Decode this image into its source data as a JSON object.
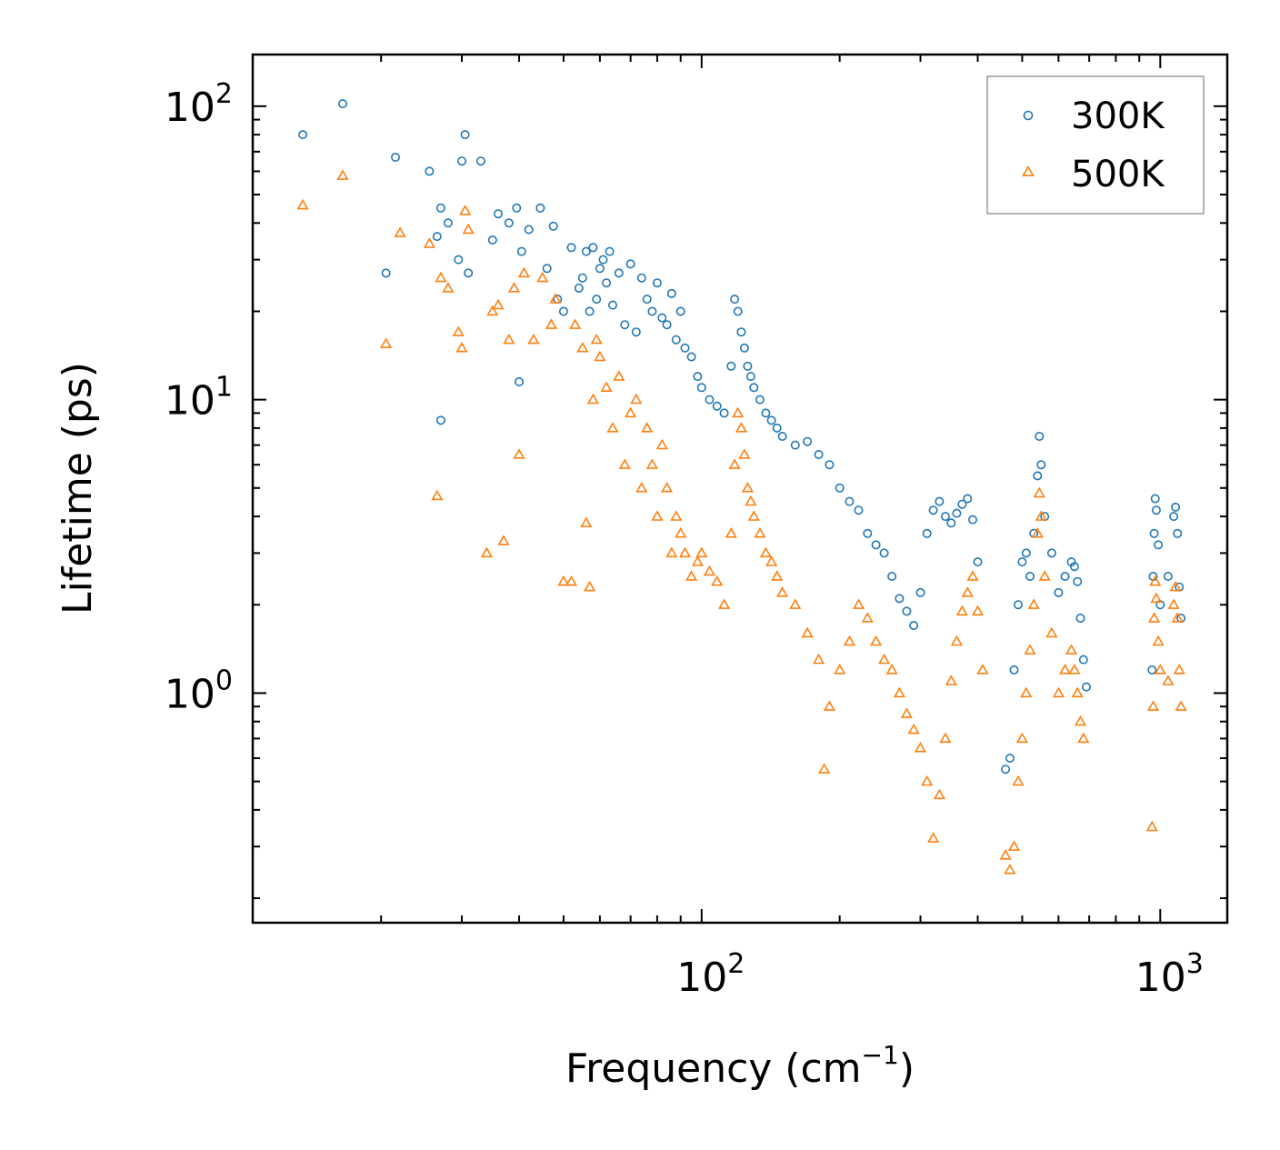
{
  "chart_data": {
    "type": "scatter",
    "title": "",
    "xlabel": "Frequency (cm",
    "xlabel_sup": "−1",
    "xlabel_close": ")",
    "ylabel": "Lifetime (ps)",
    "xscale": "log",
    "yscale": "log",
    "xlim": [
      10.5,
      1400
    ],
    "ylim": [
      0.165,
      150
    ],
    "x_ticks": [
      {
        "value": 100,
        "base": "10",
        "exp": "2"
      },
      {
        "value": 1000,
        "base": "10",
        "exp": "3"
      }
    ],
    "y_ticks": [
      {
        "value": 1,
        "base": "10",
        "exp": "0"
      },
      {
        "value": 10,
        "base": "10",
        "exp": "1"
      },
      {
        "value": 100,
        "base": "10",
        "exp": "2"
      }
    ],
    "legend_position": "top-right",
    "series": [
      {
        "name": "300K",
        "marker": "circle",
        "color": "#1f77b4",
        "points": [
          [
            13.5,
            80
          ],
          [
            16.5,
            102
          ],
          [
            21.5,
            67
          ],
          [
            25.5,
            60
          ],
          [
            20.5,
            27
          ],
          [
            26.5,
            36
          ],
          [
            27,
            45
          ],
          [
            28,
            40
          ],
          [
            29.5,
            30
          ],
          [
            30,
            65
          ],
          [
            30.5,
            80
          ],
          [
            31,
            27
          ],
          [
            33,
            65
          ],
          [
            27,
            8.5
          ],
          [
            35,
            35
          ],
          [
            36,
            43
          ],
          [
            38,
            40
          ],
          [
            39.5,
            45
          ],
          [
            40,
            11.5
          ],
          [
            40.5,
            32
          ],
          [
            42,
            38
          ],
          [
            44.5,
            45
          ],
          [
            46,
            28
          ],
          [
            47.5,
            39
          ],
          [
            48.5,
            22
          ],
          [
            50,
            20
          ],
          [
            52,
            33
          ],
          [
            54,
            24
          ],
          [
            55,
            26
          ],
          [
            56,
            32
          ],
          [
            57,
            20
          ],
          [
            58,
            33
          ],
          [
            59,
            22
          ],
          [
            60,
            28
          ],
          [
            61,
            30
          ],
          [
            62,
            25
          ],
          [
            63,
            32
          ],
          [
            64,
            21
          ],
          [
            66,
            27
          ],
          [
            68,
            18
          ],
          [
            70,
            29
          ],
          [
            72,
            17
          ],
          [
            74,
            26
          ],
          [
            76,
            22
          ],
          [
            78,
            20
          ],
          [
            80,
            25
          ],
          [
            82,
            19
          ],
          [
            84,
            18
          ],
          [
            86,
            23
          ],
          [
            88,
            16
          ],
          [
            90,
            20
          ],
          [
            92,
            15
          ],
          [
            95,
            14
          ],
          [
            98,
            12
          ],
          [
            100,
            11
          ],
          [
            104,
            10
          ],
          [
            108,
            9.5
          ],
          [
            112,
            9
          ],
          [
            116,
            13
          ],
          [
            118,
            22
          ],
          [
            120,
            20
          ],
          [
            122,
            17
          ],
          [
            124,
            15
          ],
          [
            126,
            13
          ],
          [
            128,
            12
          ],
          [
            130,
            11
          ],
          [
            134,
            10
          ],
          [
            138,
            9
          ],
          [
            142,
            8.5
          ],
          [
            146,
            8
          ],
          [
            150,
            7.5
          ],
          [
            160,
            7
          ],
          [
            170,
            7.2
          ],
          [
            180,
            6.5
          ],
          [
            190,
            6
          ],
          [
            200,
            5
          ],
          [
            210,
            4.5
          ],
          [
            220,
            4.2
          ],
          [
            230,
            3.5
          ],
          [
            240,
            3.2
          ],
          [
            250,
            3
          ],
          [
            260,
            2.5
          ],
          [
            270,
            2.1
          ],
          [
            280,
            1.9
          ],
          [
            290,
            1.7
          ],
          [
            300,
            2.2
          ],
          [
            310,
            3.5
          ],
          [
            320,
            4.2
          ],
          [
            330,
            4.5
          ],
          [
            340,
            4.0
          ],
          [
            350,
            3.8
          ],
          [
            360,
            4.1
          ],
          [
            370,
            4.4
          ],
          [
            380,
            4.6
          ],
          [
            390,
            3.9
          ],
          [
            400,
            2.8
          ],
          [
            460,
            0.55
          ],
          [
            470,
            0.6
          ],
          [
            480,
            1.2
          ],
          [
            490,
            2.0
          ],
          [
            500,
            2.8
          ],
          [
            510,
            3.0
          ],
          [
            520,
            2.5
          ],
          [
            530,
            3.5
          ],
          [
            540,
            5.5
          ],
          [
            545,
            7.5
          ],
          [
            550,
            6.0
          ],
          [
            560,
            4.0
          ],
          [
            580,
            3.0
          ],
          [
            600,
            2.2
          ],
          [
            620,
            2.5
          ],
          [
            640,
            2.8
          ],
          [
            650,
            2.7
          ],
          [
            660,
            2.4
          ],
          [
            670,
            1.8
          ],
          [
            680,
            1.3
          ],
          [
            690,
            1.05
          ],
          [
            960,
            1.2
          ],
          [
            965,
            2.5
          ],
          [
            970,
            3.5
          ],
          [
            975,
            4.6
          ],
          [
            980,
            4.2
          ],
          [
            990,
            3.2
          ],
          [
            1000,
            2.0
          ],
          [
            1040,
            2.5
          ],
          [
            1070,
            4.0
          ],
          [
            1080,
            4.3
          ],
          [
            1090,
            3.5
          ],
          [
            1100,
            2.3
          ],
          [
            1110,
            1.8
          ]
        ]
      },
      {
        "name": "500K",
        "marker": "triangle",
        "color": "#ff7f0e",
        "points": [
          [
            13.5,
            46
          ],
          [
            16.5,
            58
          ],
          [
            20.5,
            15.5
          ],
          [
            22,
            37
          ],
          [
            25.5,
            34
          ],
          [
            26.5,
            4.7
          ],
          [
            27,
            26
          ],
          [
            28,
            24
          ],
          [
            29.5,
            17
          ],
          [
            30,
            15
          ],
          [
            30.5,
            44
          ],
          [
            31,
            38
          ],
          [
            34,
            3.0
          ],
          [
            35,
            20
          ],
          [
            36,
            21
          ],
          [
            37,
            3.3
          ],
          [
            38,
            16
          ],
          [
            39,
            24
          ],
          [
            40,
            6.5
          ],
          [
            41,
            27
          ],
          [
            43,
            16
          ],
          [
            45,
            26
          ],
          [
            47,
            18
          ],
          [
            48,
            22
          ],
          [
            50,
            2.4
          ],
          [
            52,
            2.4
          ],
          [
            53,
            18
          ],
          [
            55,
            15
          ],
          [
            56,
            3.8
          ],
          [
            57,
            2.3
          ],
          [
            58,
            10
          ],
          [
            59,
            16
          ],
          [
            60,
            14
          ],
          [
            62,
            11
          ],
          [
            64,
            8
          ],
          [
            66,
            12
          ],
          [
            68,
            6
          ],
          [
            70,
            9
          ],
          [
            72,
            10
          ],
          [
            74,
            5
          ],
          [
            76,
            8
          ],
          [
            78,
            6
          ],
          [
            80,
            4
          ],
          [
            82,
            7
          ],
          [
            84,
            5
          ],
          [
            86,
            3
          ],
          [
            88,
            4
          ],
          [
            90,
            3.5
          ],
          [
            92,
            3
          ],
          [
            95,
            2.5
          ],
          [
            98,
            2.8
          ],
          [
            100,
            3.0
          ],
          [
            104,
            2.6
          ],
          [
            108,
            2.4
          ],
          [
            112,
            2.0
          ],
          [
            116,
            3.5
          ],
          [
            118,
            6
          ],
          [
            120,
            9
          ],
          [
            122,
            8
          ],
          [
            124,
            6.5
          ],
          [
            126,
            5
          ],
          [
            128,
            4.5
          ],
          [
            130,
            4
          ],
          [
            134,
            3.5
          ],
          [
            138,
            3
          ],
          [
            142,
            2.8
          ],
          [
            146,
            2.5
          ],
          [
            150,
            2.2
          ],
          [
            160,
            2.0
          ],
          [
            170,
            1.6
          ],
          [
            180,
            1.3
          ],
          [
            185,
            0.55
          ],
          [
            190,
            0.9
          ],
          [
            200,
            1.2
          ],
          [
            210,
            1.5
          ],
          [
            220,
            2.0
          ],
          [
            230,
            1.8
          ],
          [
            240,
            1.5
          ],
          [
            250,
            1.3
          ],
          [
            260,
            1.2
          ],
          [
            270,
            1.0
          ],
          [
            280,
            0.85
          ],
          [
            290,
            0.75
          ],
          [
            300,
            0.65
          ],
          [
            310,
            0.5
          ],
          [
            320,
            0.32
          ],
          [
            330,
            0.45
          ],
          [
            340,
            0.7
          ],
          [
            350,
            1.1
          ],
          [
            360,
            1.5
          ],
          [
            370,
            1.9
          ],
          [
            380,
            2.2
          ],
          [
            390,
            2.5
          ],
          [
            400,
            1.9
          ],
          [
            410,
            1.2
          ],
          [
            460,
            0.28
          ],
          [
            470,
            0.25
          ],
          [
            480,
            0.3
          ],
          [
            490,
            0.5
          ],
          [
            500,
            0.7
          ],
          [
            510,
            1.0
          ],
          [
            520,
            1.4
          ],
          [
            530,
            2.0
          ],
          [
            540,
            3.5
          ],
          [
            545,
            4.8
          ],
          [
            550,
            4.0
          ],
          [
            560,
            2.5
          ],
          [
            580,
            1.6
          ],
          [
            600,
            1.0
          ],
          [
            620,
            1.2
          ],
          [
            640,
            1.4
          ],
          [
            650,
            1.2
          ],
          [
            660,
            1.0
          ],
          [
            670,
            0.8
          ],
          [
            680,
            0.7
          ],
          [
            960,
            0.35
          ],
          [
            965,
            0.9
          ],
          [
            970,
            1.8
          ],
          [
            975,
            2.4
          ],
          [
            980,
            2.1
          ],
          [
            990,
            1.5
          ],
          [
            1000,
            1.2
          ],
          [
            1040,
            1.1
          ],
          [
            1070,
            2.0
          ],
          [
            1080,
            2.3
          ],
          [
            1090,
            1.8
          ],
          [
            1100,
            1.2
          ],
          [
            1110,
            0.9
          ]
        ]
      }
    ]
  }
}
